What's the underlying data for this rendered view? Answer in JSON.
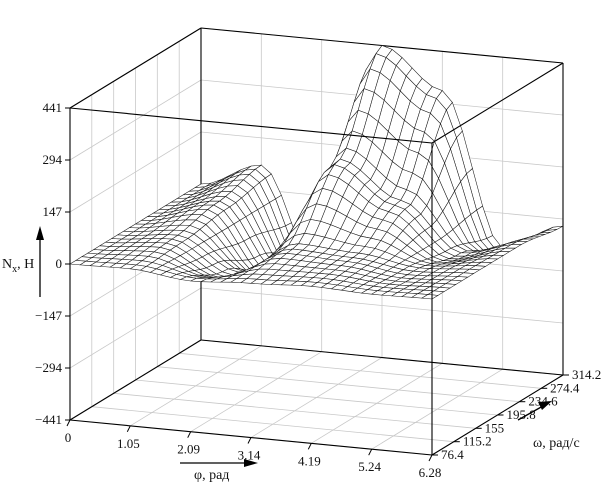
{
  "chart_data": {
    "type": "surface",
    "title": "",
    "x": {
      "label": "φ, рад",
      "ticks": [
        "0",
        "1.05",
        "2.09",
        "3.14",
        "4.19",
        "5.24",
        "6.28"
      ],
      "range": [
        0,
        6.28
      ]
    },
    "y": {
      "label": "ω, рад/с",
      "ticks": [
        "76.4",
        "115.2",
        "155",
        "195.8",
        "234.6",
        "274.4",
        "314.2"
      ],
      "range": [
        76.4,
        314.2
      ]
    },
    "z": {
      "label_main": "N",
      "label_sub": "x",
      "label_unit": ", Н",
      "ticks": [
        "441",
        "294",
        "147",
        "0",
        "−147",
        "−294",
        "−441"
      ],
      "range": [
        -441,
        441
      ]
    },
    "grid": true,
    "surface": {
      "description_values": {
        "phi": [
          0,
          1.05,
          2.09,
          3.14,
          4.19,
          5.24,
          6.28
        ],
        "omega": [
          76.4,
          155,
          234.6,
          314.2
        ],
        "Nx": [
          [
            0,
            3,
            -15,
            -5,
            3,
            -3,
            0
          ],
          [
            0,
            15,
            -70,
            20,
            12,
            -10,
            0
          ],
          [
            0,
            40,
            -150,
            190,
            90,
            -40,
            0
          ],
          [
            0,
            70,
            -240,
            441,
            330,
            -100,
            -20
          ]
        ]
      }
    }
  }
}
